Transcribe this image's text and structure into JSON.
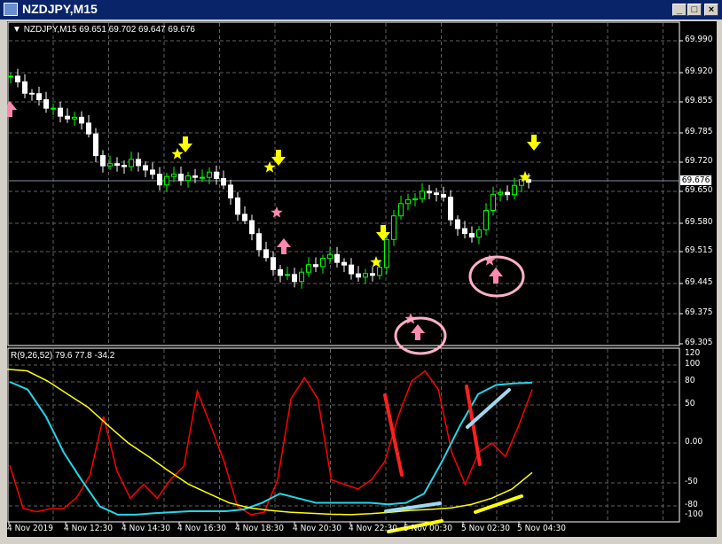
{
  "window": {
    "title": "NZDJPY,M15",
    "buttons": [
      "_",
      "□",
      "×"
    ]
  },
  "chart": {
    "header": "NZDJPY,M15  69.651 69.702 69.647 69.676",
    "current_price": "69.676",
    "price_axis": [
      "69.990",
      "69.920",
      "69.855",
      "69.785",
      "69.720",
      "69.650",
      "69.580",
      "69.515",
      "69.445",
      "69.375",
      "69.305"
    ],
    "time_axis": [
      "4 Nov 2019",
      "4 Nov 12:30",
      "4 Nov 14:30",
      "4 Nov 16:30",
      "4 Nov 18:30",
      "4 Nov 20:30",
      "4 Nov 22:30",
      "5 Nov 00:30",
      "5 Nov 02:30",
      "5 Nov 04:30"
    ],
    "price_path": [
      69.91,
      69.88,
      69.862,
      69.84,
      69.822,
      69.812,
      69.808,
      69.718,
      69.708,
      69.708,
      69.718,
      69.698,
      69.668,
      69.688,
      69.678,
      69.682,
      69.688,
      69.68,
      69.62,
      69.58,
      69.53,
      69.48,
      69.46,
      69.45,
      69.478,
      69.488,
      69.508,
      69.478,
      69.458,
      69.458,
      69.478,
      69.598,
      69.628,
      69.64,
      69.65,
      69.638,
      69.568,
      69.548,
      69.558,
      69.648,
      69.638,
      69.668,
      69.676
    ],
    "colors": {
      "bull": "#00ff00",
      "bear": "#ffffff",
      "grid": "#606060",
      "axis": "#ffffff"
    }
  },
  "indicator": {
    "label": "R(9,26,52) 79.6 77.8 -34.2",
    "axis": [
      "120",
      "100",
      "80",
      "50",
      "0.00",
      "-50",
      "-80",
      "-100"
    ],
    "red": [
      -28,
      -85,
      -92,
      -86,
      -86,
      -69,
      -40,
      35,
      -35,
      -70,
      -52,
      -70,
      -46,
      -29,
      68,
      23,
      -23,
      -81,
      -98,
      -93,
      -46,
      58,
      85,
      58,
      -46,
      -52,
      -58,
      -46,
      -23,
      35,
      81,
      93,
      70,
      -12,
      -52,
      -12,
      0,
      -17,
      23,
      70
    ],
    "cyan": [
      80,
      70,
      35,
      -12,
      -47,
      -81,
      -98,
      -98,
      -95,
      -93,
      -91,
      -91,
      -91,
      -87,
      -76,
      -64,
      -70,
      -76,
      -76,
      -76,
      -76,
      -78,
      -76,
      -64,
      -23,
      23,
      64,
      76,
      78,
      79
    ],
    "yellow": [
      95,
      93,
      81,
      64,
      47,
      23,
      0,
      -17,
      -35,
      -52,
      -64,
      -76,
      -84,
      -89,
      -93,
      -95,
      -97,
      -98,
      -96,
      -93,
      -89,
      -87,
      -84,
      -78,
      -70,
      -58,
      -37
    ],
    "colors": {
      "red": "#ff0000",
      "cyan": "#20d8e8",
      "yellow": "#ffff00"
    }
  },
  "annotations": {
    "colors": {
      "down_arrow": "#ffff00",
      "star_yellow": "#ffff00",
      "up_arrow": "#ff88b0",
      "circle": "#ffb0c8",
      "drawn_red": "#ff2020",
      "drawn_blue": "#a0d8f0",
      "drawn_yellow": "#ffff00"
    }
  }
}
